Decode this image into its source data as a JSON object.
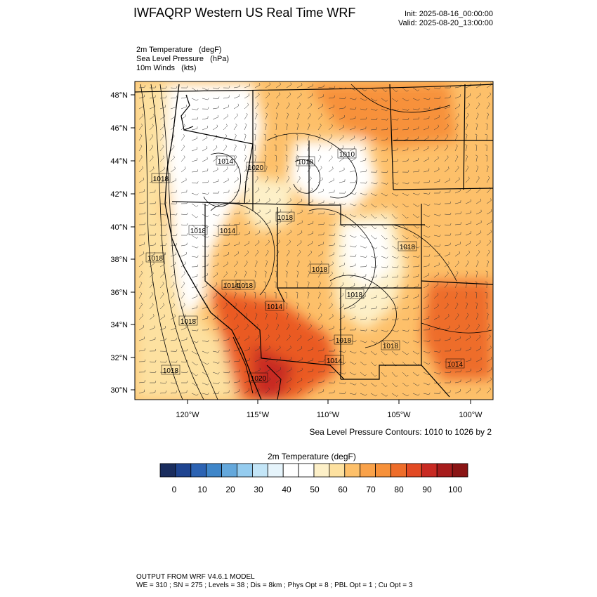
{
  "header": {
    "title": "IWFAQRP Western US Real Time WRF",
    "init": "Init: 2025-08-16_00:00:00",
    "valid": "Valid: 2025-08-20_13:00:00"
  },
  "fields": [
    "2m Temperature   (degF)",
    "Sea Level Pressure   (hPa)",
    "10m Winds   (kts)"
  ],
  "map": {
    "lat_ticks": [
      "48°N",
      "46°N",
      "44°N",
      "42°N",
      "40°N",
      "38°N",
      "36°N",
      "34°N",
      "32°N",
      "30°N"
    ],
    "lon_ticks": [
      "120°W",
      "115°W",
      "110°W",
      "105°W",
      "100°W"
    ],
    "isobar_labels": [
      "1018",
      "1014",
      "1020",
      "1018",
      "1018",
      "1014",
      "1018",
      "1010",
      "1018",
      "1018",
      "1014",
      "1018",
      "1018",
      "1018",
      "1014",
      "1018",
      "1020",
      "1014",
      "1018",
      "1018",
      "1014",
      "1018"
    ],
    "colors": {
      "cool": "#ffffff",
      "mild": "#fdf0c8",
      "warm": "#fdc06a",
      "hot": "#f7913a",
      "very_hot": "#ea5a23",
      "border": "#000000"
    }
  },
  "contour_note": "Sea Level Pressure Contours: 1010 to 1026 by 2",
  "colorbar": {
    "title": "2m Temperature  (degF)",
    "labels": [
      "0",
      "10",
      "20",
      "30",
      "40",
      "50",
      "60",
      "70",
      "80",
      "90",
      "100"
    ],
    "colors": [
      "#1a2d5e",
      "#1f4490",
      "#2c63b3",
      "#3f86c9",
      "#64a8dc",
      "#95ccef",
      "#c3e5f7",
      "#e6f4fb",
      "#ffffff",
      "#ffffff",
      "#fdf0c8",
      "#fde1a0",
      "#fdc06a",
      "#f9a24a",
      "#f7913a",
      "#ee6d2a",
      "#e24a24",
      "#c82a22",
      "#a71c1c",
      "#8a1414"
    ]
  },
  "footer": {
    "line1": "OUTPUT FROM WRF V4.6.1 MODEL",
    "line2": "WE = 310 ; SN = 275 ; Levels = 38 ; Dis = 8km ; Phys Opt = 8 ; PBL Opt = 1 ; Cu Opt = 3"
  }
}
